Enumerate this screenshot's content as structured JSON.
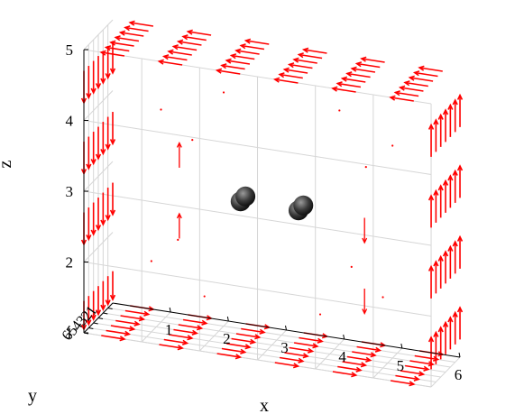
{
  "chart_data": {
    "type": "quiver3d",
    "title": "",
    "xlabel": "x",
    "ylabel": "y",
    "zlabel": "z",
    "xlim": [
      0,
      6
    ],
    "ylim": [
      0,
      6
    ],
    "zlim": [
      1,
      5
    ],
    "xticks": [
      "1",
      "2",
      "3",
      "4",
      "5",
      "6"
    ],
    "yticks": [
      "1",
      "2",
      "3",
      "4",
      "5",
      "6"
    ],
    "zticks": [
      "1",
      "2",
      "3",
      "4",
      "5"
    ],
    "grid": true,
    "arrow_color": "#ff0000",
    "sphere_color": "#3a3a3a",
    "spheres": [
      {
        "x": 2.5,
        "y": 3.5,
        "z": 3
      },
      {
        "x": 3.5,
        "y": 3.5,
        "z": 3
      },
      {
        "x": 2.5,
        "y": 2.5,
        "z": 3
      },
      {
        "x": 3.5,
        "y": 2.5,
        "z": 3
      }
    ],
    "field_description": {
      "left_face_x_0": "arrows point -z (down)",
      "right_face_x_6": "arrows point +z (up)",
      "top_face_z_5": "arrows point -x",
      "bottom_face_z_1": "arrows point +x",
      "interior_near_spheres": "small arrows, z direction"
    }
  }
}
